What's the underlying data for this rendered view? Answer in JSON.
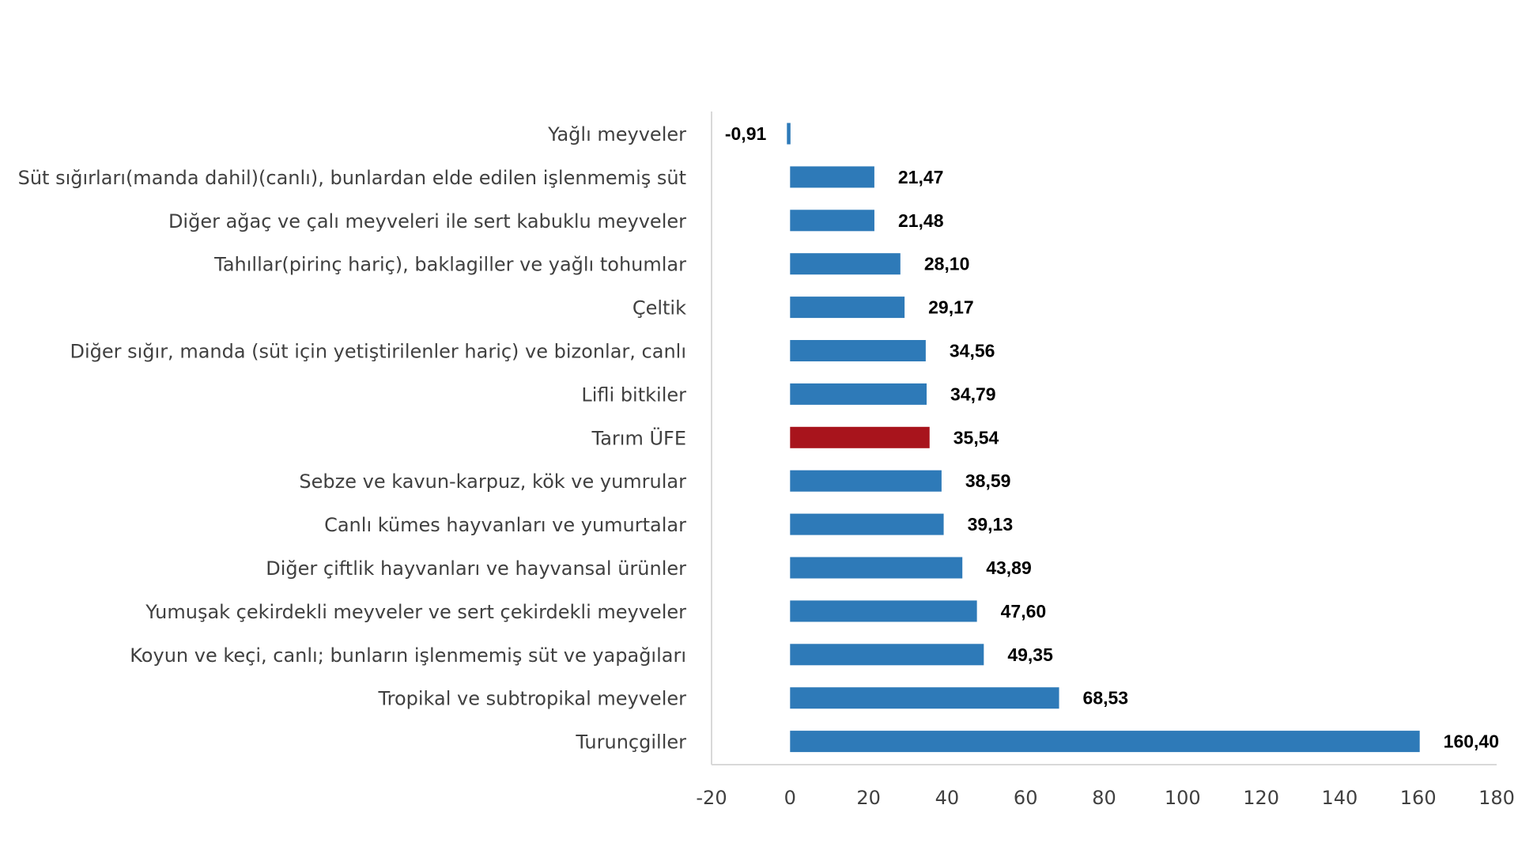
{
  "chart_data": {
    "type": "bar",
    "orientation": "horizontal",
    "title": "",
    "xlabel": "",
    "ylabel": "",
    "xlim": [
      -20,
      180
    ],
    "xticks": [
      -20,
      0,
      20,
      40,
      60,
      80,
      100,
      120,
      140,
      160,
      180
    ],
    "xtick_labels": [
      "-20",
      "0",
      "20",
      "40",
      "60",
      "80",
      "100",
      "120",
      "140",
      "160",
      "180"
    ],
    "grid": false,
    "categories": [
      "Yağlı meyveler",
      "Süt sığırları(manda dahil)(canlı), bunlardan elde edilen işlenmemiş süt",
      "Diğer ağaç ve çalı meyveleri ile sert kabuklu meyveler",
      "Tahıllar(pirinç hariç), baklagiller ve yağlı tohumlar",
      "Çeltik",
      "Diğer sığır, manda (süt için yetiştirilenler hariç) ve bizonlar, canlı",
      "Lifli bitkiler",
      "Tarım ÜFE",
      "Sebze ve kavun-karpuz, kök ve yumrular",
      "Canlı kümes hayvanları ve yumurtalar",
      "Diğer çiftlik hayvanları ve hayvansal ürünler",
      "Yumuşak çekirdekli meyveler ve sert çekirdekli meyveler",
      "Koyun ve keçi, canlı; bunların işlenmemiş süt ve yapağıları",
      "Tropikal ve subtropikal meyveler",
      "Turunçgiller"
    ],
    "values": [
      -0.91,
      21.47,
      21.48,
      28.1,
      29.17,
      34.56,
      34.79,
      35.54,
      38.59,
      39.13,
      43.89,
      47.6,
      49.35,
      68.53,
      160.4
    ],
    "value_labels": [
      "-0,91",
      "21,47",
      "21,48",
      "28,10",
      "29,17",
      "34,56",
      "34,79",
      "35,54",
      "38,59",
      "39,13",
      "43,89",
      "47,60",
      "49,35",
      "68,53",
      "160,40"
    ],
    "highlight_index": 7,
    "colors": {
      "bar": "#2E7AB8",
      "highlight": "#A8141C",
      "axis": "#D9D9D9"
    }
  }
}
